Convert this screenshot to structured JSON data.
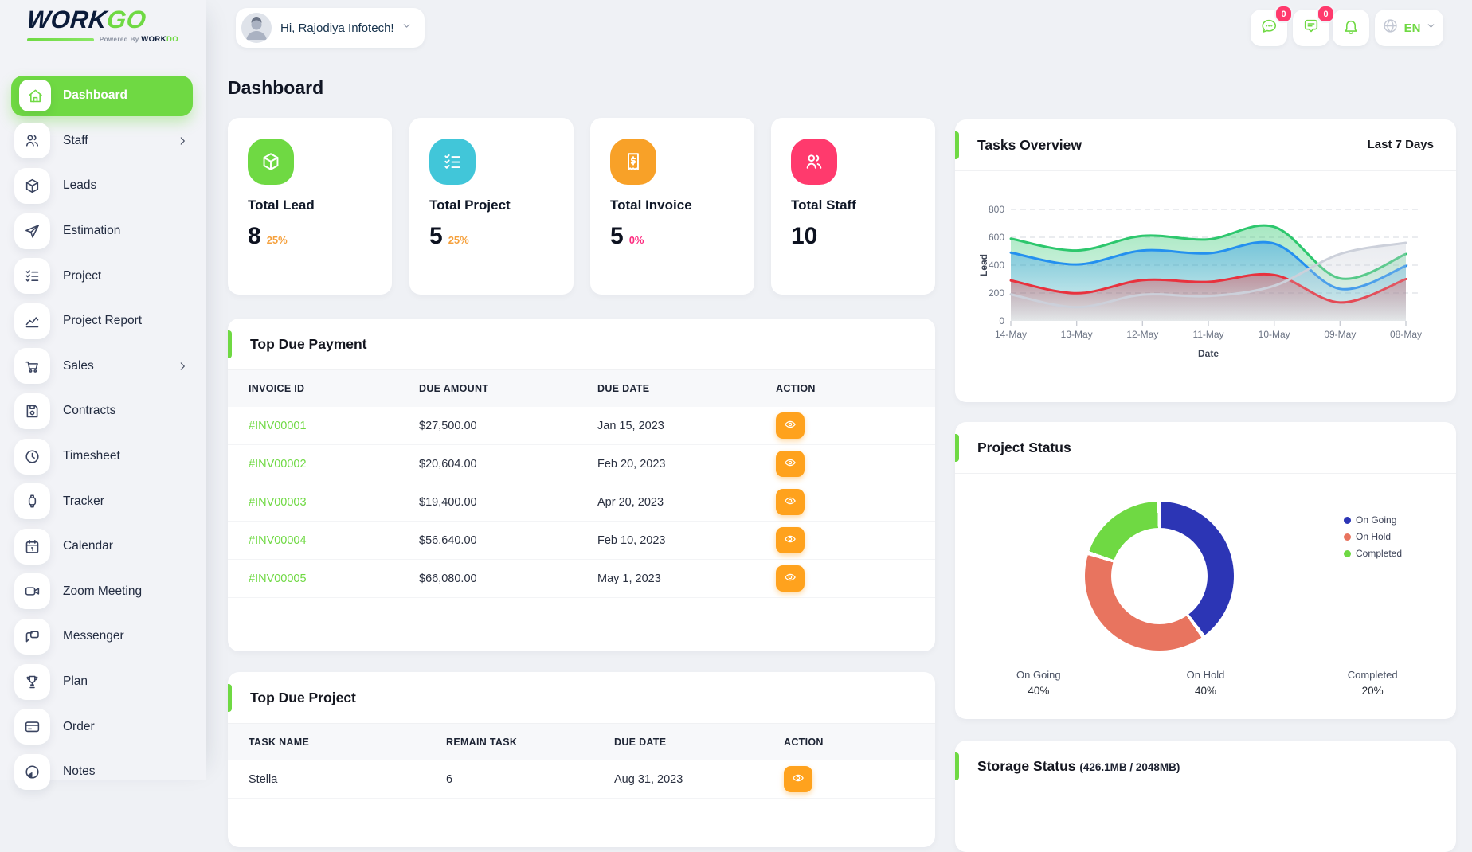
{
  "brand": {
    "logo_primary": "WORK",
    "logo_accent": "GO",
    "powered_prefix": "Powered By ",
    "powered_primary": "WORK",
    "powered_accent": "DO",
    "accent_color": "#6fd943"
  },
  "header": {
    "greeting": "Hi, Rajodiya Infotech!",
    "chat_badge": "0",
    "message_badge": "0",
    "language": "EN"
  },
  "page": {
    "title": "Dashboard"
  },
  "sidebar": {
    "items": [
      {
        "label": "Dashboard",
        "icon": "home",
        "active": true,
        "children": false
      },
      {
        "label": "Staff",
        "icon": "users",
        "active": false,
        "children": true
      },
      {
        "label": "Leads",
        "icon": "cube",
        "active": false,
        "children": false
      },
      {
        "label": "Estimation",
        "icon": "send",
        "active": false,
        "children": false
      },
      {
        "label": "Project",
        "icon": "checklist",
        "active": false,
        "children": false
      },
      {
        "label": "Project Report",
        "icon": "trend",
        "active": false,
        "children": false
      },
      {
        "label": "Sales",
        "icon": "cart",
        "active": false,
        "children": true
      },
      {
        "label": "Contracts",
        "icon": "contract",
        "active": false,
        "children": false
      },
      {
        "label": "Timesheet",
        "icon": "clock",
        "active": false,
        "children": false
      },
      {
        "label": "Tracker",
        "icon": "watch",
        "active": false,
        "children": false
      },
      {
        "label": "Calendar",
        "icon": "calendar",
        "active": false,
        "children": false
      },
      {
        "label": "Zoom Meeting",
        "icon": "video",
        "active": false,
        "children": false
      },
      {
        "label": "Messenger",
        "icon": "chat",
        "active": false,
        "children": false
      },
      {
        "label": "Plan",
        "icon": "trophy",
        "active": false,
        "children": false
      },
      {
        "label": "Order",
        "icon": "card",
        "active": false,
        "children": false
      },
      {
        "label": "Notes",
        "icon": "pie",
        "active": false,
        "children": false
      }
    ]
  },
  "stats": [
    {
      "label": "Total Lead",
      "value": "8",
      "delta": "25%",
      "icon": "cube",
      "icon_bg": "#6fd943",
      "delta_color": "#f5a03c"
    },
    {
      "label": "Total Project",
      "value": "5",
      "delta": "25%",
      "icon": "checklist",
      "icon_bg": "#41c6d9",
      "delta_color": "#f5a03c"
    },
    {
      "label": "Total Invoice",
      "value": "5",
      "delta": "0%",
      "icon": "receipt",
      "icon_bg": "#f8a128",
      "delta_color": "#fd2e80"
    },
    {
      "label": "Total Staff",
      "value": "10",
      "delta": "",
      "icon": "users",
      "icon_bg": "#ff3a6d",
      "delta_color": "#fd2e80"
    }
  ],
  "due_payment": {
    "title": "Top Due Payment",
    "columns": [
      "INVOICE ID",
      "DUE AMOUNT",
      "DUE DATE",
      "ACTION"
    ],
    "rows": [
      {
        "id": "#INV00001",
        "amount": "$27,500.00",
        "date": "Jan 15, 2023"
      },
      {
        "id": "#INV00002",
        "amount": "$20,604.00",
        "date": "Feb 20, 2023"
      },
      {
        "id": "#INV00003",
        "amount": "$19,400.00",
        "date": "Apr 20, 2023"
      },
      {
        "id": "#INV00004",
        "amount": "$56,640.00",
        "date": "Feb 10, 2023"
      },
      {
        "id": "#INV00005",
        "amount": "$66,080.00",
        "date": "May 1, 2023"
      }
    ]
  },
  "due_project": {
    "title": "Top Due Project",
    "columns": [
      "TASK NAME",
      "REMAIN TASK",
      "DUE DATE",
      "ACTION"
    ],
    "rows": [
      {
        "task": "Stella",
        "remain": "6",
        "date": "Aug 31, 2023"
      }
    ]
  },
  "tasks_overview": {
    "title": "Tasks Overview",
    "period": "Last 7 Days"
  },
  "project_status": {
    "title": "Project Status",
    "slices": [
      {
        "label": "On Going",
        "pct": 40,
        "color": "#2c35b5"
      },
      {
        "label": "On Hold",
        "pct": 40,
        "color": "#e8745f"
      },
      {
        "label": "Completed",
        "pct": 20,
        "color": "#6fd943"
      }
    ],
    "summary": [
      {
        "label": "On Going",
        "pct": "40%"
      },
      {
        "label": "On Hold",
        "pct": "40%"
      },
      {
        "label": "Completed",
        "pct": "20%"
      }
    ]
  },
  "storage": {
    "title": "Storage Status",
    "detail": "(426.1MB / 2048MB)"
  },
  "chart_data": [
    {
      "type": "area",
      "title": "Tasks Overview",
      "period": "Last 7 Days",
      "xlabel": "Date",
      "ylabel": "Lead",
      "x": [
        "14-May",
        "13-May",
        "12-May",
        "11-May",
        "10-May",
        "09-May",
        "08-May"
      ],
      "yticks": [
        0,
        200,
        400,
        600,
        800
      ],
      "ylim": [
        0,
        800
      ],
      "grid": true,
      "legend_position": "none",
      "series": [
        {
          "name": "green",
          "color": "#2dc76d",
          "values": [
            590,
            505,
            610,
            585,
            675,
            305,
            480
          ]
        },
        {
          "name": "blue",
          "color": "#2490ef",
          "values": [
            490,
            405,
            505,
            485,
            555,
            230,
            395
          ]
        },
        {
          "name": "red",
          "color": "#e8323e",
          "values": [
            290,
            198,
            292,
            280,
            330,
            132,
            300
          ]
        },
        {
          "name": "gray",
          "color": "#ccd0da",
          "values": [
            190,
            98,
            188,
            178,
            252,
            480,
            560
          ]
        }
      ]
    },
    {
      "type": "pie",
      "title": "Project Status",
      "labels": [
        "On Going",
        "On Hold",
        "Completed"
      ],
      "values": [
        40,
        40,
        20
      ],
      "colors": [
        "#2c35b5",
        "#e8745f",
        "#6fd943"
      ],
      "donut": true,
      "legend_position": "right"
    }
  ]
}
